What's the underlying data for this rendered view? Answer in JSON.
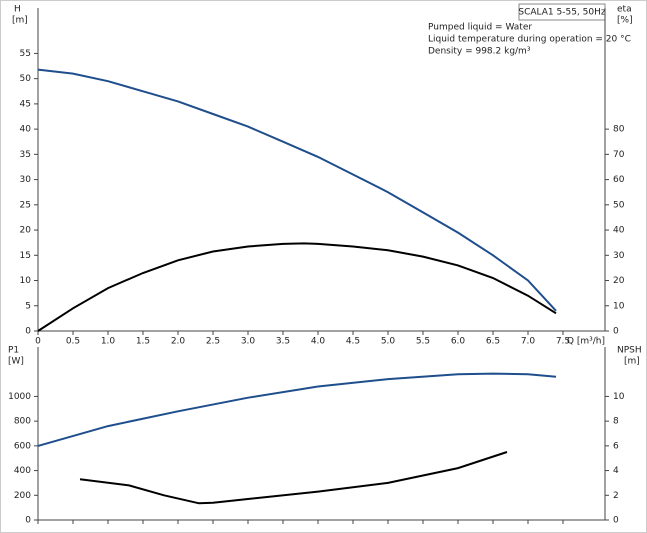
{
  "chart_data": [
    {
      "type": "line",
      "title": "SCALA1 5-55, 50Hz",
      "annotations": [
        "Pumped liquid = Water",
        "Liquid temperature during operation = 20 °C",
        "Density = 998.2 kg/m³"
      ],
      "ylabel": "H",
      "yunit": "[m]",
      "y2label": "eta",
      "y2unit": "[%]",
      "xlabel": "Q [m³/h]",
      "xlim": [
        0,
        8.1
      ],
      "xticks": [
        0,
        0.5,
        {
          "value": 1,
          "label": "1.0"
        },
        1.5,
        {
          "value": 2,
          "label": "2.0"
        },
        2.5,
        {
          "value": 3,
          "label": "3.0"
        },
        3.5,
        {
          "value": 4,
          "label": "4.0"
        },
        4.5,
        {
          "value": 5,
          "label": "5.0"
        },
        5.5,
        {
          "value": 6,
          "label": "6.0"
        },
        6.5,
        {
          "value": 7,
          "label": "7.0"
        },
        7.5
      ],
      "ylim": [
        0,
        64
      ],
      "yticks": [
        0,
        5,
        10,
        15,
        20,
        25,
        30,
        35,
        40,
        45,
        50,
        55
      ],
      "y2lim": [
        0,
        128
      ],
      "y2ticks": [
        0,
        10,
        20,
        30,
        40,
        50,
        60,
        70,
        80
      ],
      "series": [
        {
          "color": "#1f4e8c",
          "x": [
            0,
            0.5,
            1,
            1.5,
            2,
            2.5,
            3,
            3.5,
            4,
            4.5,
            5,
            5.5,
            6,
            6.5,
            7,
            7.4
          ],
          "values": [
            51.8,
            51,
            49.5,
            47.5,
            45.5,
            43,
            40.5,
            37.5,
            34.5,
            31,
            27.5,
            23.5,
            19.5,
            15,
            10,
            4
          ]
        },
        {
          "color": "#000000",
          "axis": "y2",
          "x": [
            0,
            0.5,
            1,
            1.5,
            2,
            2.5,
            3,
            3.5,
            3.8,
            4,
            4.5,
            5,
            5.5,
            6,
            6.5,
            7,
            7.4
          ],
          "values": [
            0,
            9,
            17,
            23,
            28,
            31.5,
            33.5,
            34.5,
            34.7,
            34.5,
            33.5,
            32,
            29.5,
            26,
            21,
            14,
            7
          ]
        }
      ]
    },
    {
      "type": "line",
      "ylabel": "P1",
      "yunit": "[W]",
      "y2label": "NPSH",
      "y2unit": "[m]",
      "xlim": [
        0,
        8.1
      ],
      "ylim": [
        0,
        1400
      ],
      "yticks": [
        0,
        200,
        400,
        600,
        800,
        1000
      ],
      "y2lim": [
        0,
        14
      ],
      "y2ticks": [
        0,
        2,
        4,
        6,
        8,
        10
      ],
      "series": [
        {
          "color": "#1f4e8c",
          "x": [
            0,
            1,
            2,
            3,
            4,
            5,
            6,
            6.5,
            7,
            7.4
          ],
          "values": [
            600,
            760,
            880,
            990,
            1080,
            1140,
            1180,
            1185,
            1180,
            1160
          ]
        },
        {
          "color": "#000000",
          "axis": "y2",
          "x": [
            0.6,
            1.3,
            1.8,
            2.3,
            2.5,
            3,
            4,
            5,
            6,
            6.7
          ],
          "values": [
            3.3,
            2.8,
            2.0,
            1.35,
            1.4,
            1.7,
            2.3,
            3.0,
            4.2,
            5.5
          ]
        }
      ]
    }
  ]
}
